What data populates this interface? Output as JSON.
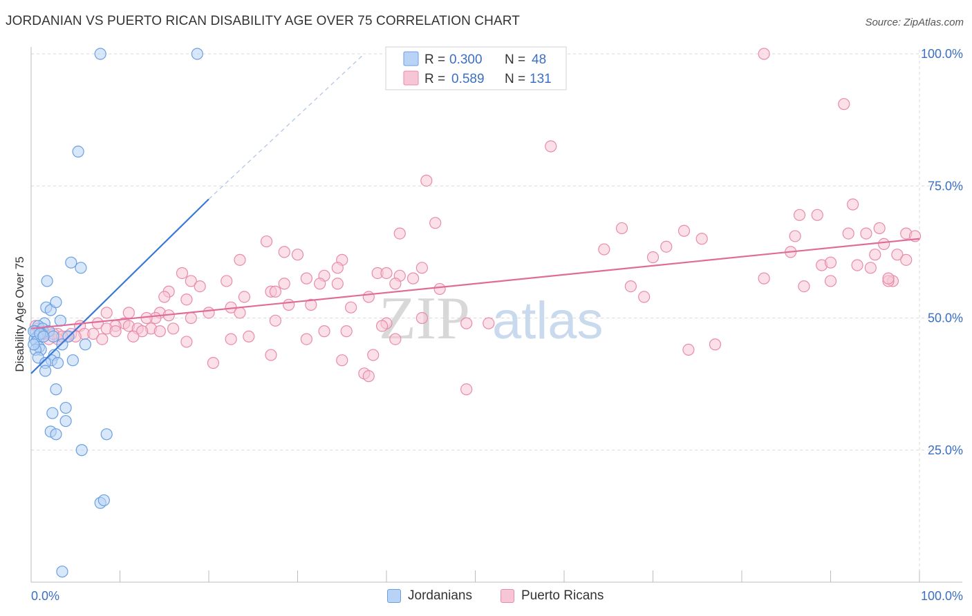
{
  "title": "JORDANIAN VS PUERTO RICAN DISABILITY AGE OVER 75 CORRELATION CHART",
  "source": "Source: ZipAtlas.com",
  "watermark": {
    "zip": "ZIP",
    "atlas": "atlas"
  },
  "colors": {
    "blue_fill": "#b8d3f5",
    "blue_stroke": "#6a9fe0",
    "blue_line": "#3a78d6",
    "pink_fill": "#f7c6d6",
    "pink_stroke": "#e88aab",
    "pink_line": "#e06b97",
    "value_text": "#3a6fc4",
    "grid": "#d9d9d9"
  },
  "legend_stats": [
    {
      "r_label": "R =",
      "r_value": "0.300",
      "n_label": "N =",
      "n_value": "48",
      "color": "blue"
    },
    {
      "r_label": "R =",
      "r_value": "0.589",
      "n_label": "N =",
      "n_value": "131",
      "color": "pink"
    }
  ],
  "legend_bottom": [
    {
      "label": "Jordanians",
      "color": "blue"
    },
    {
      "label": "Puerto Ricans",
      "color": "pink"
    }
  ],
  "chart_data": {
    "type": "scatter",
    "title": "JORDANIAN VS PUERTO RICAN DISABILITY AGE OVER 75 CORRELATION CHART",
    "xlabel": "",
    "ylabel": "Disability Age Over 75",
    "xlim": [
      0,
      100
    ],
    "ylim": [
      0,
      100
    ],
    "x_tick_labels": [
      "0.0%",
      "100.0%"
    ],
    "y_tick_labels": [
      {
        "value": 25,
        "label": "25.0%"
      },
      {
        "value": 50,
        "label": "50.0%"
      },
      {
        "value": 75,
        "label": "75.0%"
      },
      {
        "value": 100,
        "label": "100.0%"
      }
    ],
    "grid": true,
    "legend_position": "top-center",
    "series": [
      {
        "name": "Jordanians",
        "color": "blue",
        "trend": {
          "x": [
            0,
            20
          ],
          "y": [
            39.5,
            72.5
          ],
          "dashed_to": [
            37.5,
            100
          ]
        },
        "points": [
          [
            7.8,
            100
          ],
          [
            18.7,
            100
          ],
          [
            5.3,
            81.5
          ],
          [
            4.5,
            60.5
          ],
          [
            5.6,
            59.5
          ],
          [
            1.8,
            57
          ],
          [
            1.7,
            52
          ],
          [
            2.2,
            51.5
          ],
          [
            2.8,
            53
          ],
          [
            3.3,
            49.5
          ],
          [
            1.5,
            49
          ],
          [
            0.8,
            48.5
          ],
          [
            1.3,
            48
          ],
          [
            0.5,
            47.5
          ],
          [
            2.0,
            47.5
          ],
          [
            1.2,
            47
          ],
          [
            0.7,
            46.5
          ],
          [
            2.5,
            46.5
          ],
          [
            4.2,
            46.5
          ],
          [
            0.4,
            46
          ],
          [
            0.6,
            45.5
          ],
          [
            3.5,
            45
          ],
          [
            6.1,
            45
          ],
          [
            0.9,
            44.5
          ],
          [
            1.1,
            44
          ],
          [
            0.5,
            44
          ],
          [
            2.6,
            43
          ],
          [
            0.8,
            42.5
          ],
          [
            2.3,
            42
          ],
          [
            1.6,
            41.5
          ],
          [
            4.7,
            42
          ],
          [
            3.0,
            41.5
          ],
          [
            1.6,
            40
          ],
          [
            2.8,
            36.5
          ],
          [
            3.9,
            33
          ],
          [
            2.4,
            32
          ],
          [
            3.9,
            30.5
          ],
          [
            2.2,
            28.5
          ],
          [
            2.8,
            28
          ],
          [
            8.5,
            28
          ],
          [
            5.7,
            25
          ],
          [
            7.8,
            15
          ],
          [
            8.2,
            15.5
          ],
          [
            3.5,
            2
          ],
          [
            0.3,
            47.5
          ],
          [
            1.0,
            47
          ],
          [
            1.4,
            46.5
          ],
          [
            0.3,
            45
          ]
        ]
      },
      {
        "name": "Puerto Ricans",
        "color": "pink",
        "trend": {
          "x": [
            0,
            100
          ],
          "y": [
            48,
            65
          ]
        },
        "points": [
          [
            82.5,
            100
          ],
          [
            91.5,
            90.5
          ],
          [
            58.5,
            82.5
          ],
          [
            44.5,
            76
          ],
          [
            92.5,
            71.5
          ],
          [
            88.5,
            69.5
          ],
          [
            86.5,
            69.5
          ],
          [
            45.5,
            68
          ],
          [
            66.5,
            67
          ],
          [
            73.5,
            66.5
          ],
          [
            95.5,
            67
          ],
          [
            94.0,
            66
          ],
          [
            92.0,
            66
          ],
          [
            98.5,
            66
          ],
          [
            99.5,
            65.5
          ],
          [
            41.5,
            66
          ],
          [
            86.0,
            65.5
          ],
          [
            75.5,
            65
          ],
          [
            26.5,
            64.5
          ],
          [
            96.0,
            64
          ],
          [
            64.5,
            63
          ],
          [
            71.5,
            63.5
          ],
          [
            85.5,
            62.5
          ],
          [
            28.5,
            62.5
          ],
          [
            30.0,
            62
          ],
          [
            97.5,
            62
          ],
          [
            95.0,
            62
          ],
          [
            70.0,
            61.5
          ],
          [
            23.5,
            61
          ],
          [
            35.0,
            61
          ],
          [
            89.0,
            60
          ],
          [
            90.0,
            60.5
          ],
          [
            93.0,
            60
          ],
          [
            98.5,
            61
          ],
          [
            94.5,
            59.5
          ],
          [
            34.5,
            59.5
          ],
          [
            44.0,
            59.5
          ],
          [
            17.0,
            58.5
          ],
          [
            33.0,
            58
          ],
          [
            39.0,
            58.5
          ],
          [
            40.0,
            58.5
          ],
          [
            41.5,
            58
          ],
          [
            43.0,
            57.5
          ],
          [
            18.0,
            57
          ],
          [
            22.0,
            57
          ],
          [
            31.0,
            57.5
          ],
          [
            82.5,
            57.5
          ],
          [
            90.0,
            57
          ],
          [
            97.0,
            57
          ],
          [
            96.5,
            57
          ],
          [
            28.5,
            56.5
          ],
          [
            32.5,
            56.5
          ],
          [
            34.5,
            56.5
          ],
          [
            41.0,
            56.5
          ],
          [
            19.0,
            56
          ],
          [
            67.5,
            56
          ],
          [
            87.0,
            56
          ],
          [
            46.0,
            55.5
          ],
          [
            15.5,
            55
          ],
          [
            27.0,
            55
          ],
          [
            27.5,
            55
          ],
          [
            24.0,
            54
          ],
          [
            15.0,
            54
          ],
          [
            17.5,
            53.5
          ],
          [
            69.0,
            54
          ],
          [
            38.0,
            54
          ],
          [
            29.0,
            52.5
          ],
          [
            31.5,
            52.5
          ],
          [
            22.5,
            52
          ],
          [
            36.0,
            52
          ],
          [
            20.0,
            51
          ],
          [
            23.5,
            51
          ],
          [
            11.0,
            51
          ],
          [
            14.5,
            51
          ],
          [
            8.5,
            51
          ],
          [
            14.0,
            50
          ],
          [
            18.0,
            50
          ],
          [
            15.5,
            50.5
          ],
          [
            13.0,
            50
          ],
          [
            27.5,
            49.5
          ],
          [
            44.0,
            50
          ],
          [
            10.5,
            49
          ],
          [
            7.5,
            49
          ],
          [
            5.5,
            48.5
          ],
          [
            9.5,
            48.5
          ],
          [
            11.0,
            48.5
          ],
          [
            13.5,
            48
          ],
          [
            12.0,
            48
          ],
          [
            16.0,
            48
          ],
          [
            8.5,
            48
          ],
          [
            9.5,
            47.5
          ],
          [
            12.5,
            47.5
          ],
          [
            14.5,
            47.5
          ],
          [
            3.0,
            47
          ],
          [
            4.5,
            47
          ],
          [
            6.0,
            47
          ],
          [
            7.0,
            47
          ],
          [
            5.0,
            46.5
          ],
          [
            4.0,
            46.5
          ],
          [
            3.0,
            46
          ],
          [
            8.0,
            46
          ],
          [
            11.5,
            46.5
          ],
          [
            2.0,
            46
          ],
          [
            1.5,
            47
          ],
          [
            1.0,
            47.5
          ],
          [
            0.5,
            48.5
          ],
          [
            0.8,
            48
          ],
          [
            1.8,
            47.5
          ],
          [
            2.5,
            47
          ],
          [
            3.5,
            46.5
          ],
          [
            49.0,
            49
          ],
          [
            51.5,
            49
          ],
          [
            40.0,
            49
          ],
          [
            39.5,
            48.5
          ],
          [
            33.0,
            47.5
          ],
          [
            35.5,
            47.5
          ],
          [
            24.5,
            46.5
          ],
          [
            22.5,
            46
          ],
          [
            31.0,
            46
          ],
          [
            41.0,
            46
          ],
          [
            17.5,
            45.5
          ],
          [
            77.0,
            45
          ],
          [
            74.0,
            44
          ],
          [
            27.0,
            43
          ],
          [
            38.5,
            43
          ],
          [
            20.5,
            41.5
          ],
          [
            35.0,
            42
          ],
          [
            37.5,
            39.5
          ],
          [
            38.0,
            39
          ],
          [
            49.0,
            36.5
          ],
          [
            96.5,
            57.5
          ]
        ]
      }
    ]
  }
}
